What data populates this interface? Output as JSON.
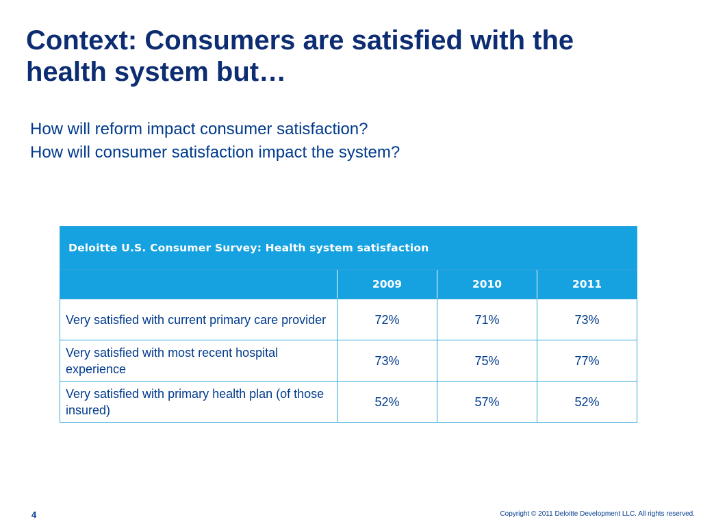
{
  "slide": {
    "title_line1": "Context: Consumers are satisfied with the",
    "title_line2": "health system but…",
    "questions": [
      "How will reform impact consumer satisfaction?",
      "How will consumer satisfaction impact the system?"
    ]
  },
  "table": {
    "caption": "Deloitte U.S. Consumer Survey: Health system satisfaction",
    "columns": [
      "",
      "2009",
      "2010",
      "2011"
    ],
    "rows": [
      {
        "label": "Very satisfied with current primary care provider",
        "values": [
          "72%",
          "71%",
          "73%"
        ]
      },
      {
        "label": "Very satisfied with most recent hospital experience",
        "values": [
          "73%",
          "75%",
          "77%"
        ]
      },
      {
        "label": "Very satisfied with primary health plan (of those insured)",
        "values": [
          "52%",
          "57%",
          "52%"
        ]
      }
    ]
  },
  "footer": {
    "page_number": "4",
    "copyright": "Copyright © 2011 Deloitte Development LLC. All rights reserved."
  },
  "colors": {
    "title": "#0d2d72",
    "body_text": "#003a8c",
    "table_header": "#16a2e0",
    "table_border": "#2aa3d9"
  }
}
